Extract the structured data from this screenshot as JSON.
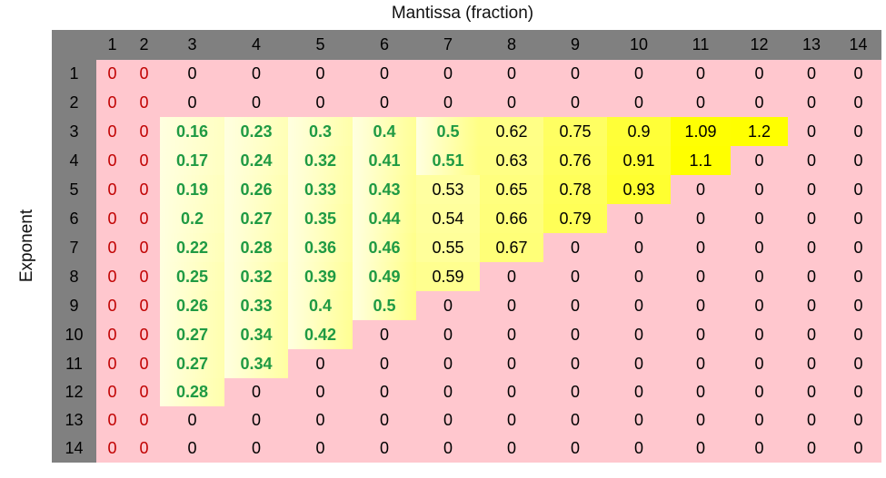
{
  "chart_data": {
    "type": "heatmap",
    "xlabel": "Mantissa (fraction)",
    "ylabel": "Exponent",
    "columns": [
      1,
      2,
      3,
      4,
      5,
      6,
      7,
      8,
      9,
      10,
      11,
      12,
      13,
      14
    ],
    "rows": [
      1,
      2,
      3,
      4,
      5,
      6,
      7,
      8,
      9,
      10,
      11,
      12,
      13,
      14
    ],
    "values": [
      [
        "0",
        "0",
        "0",
        "0",
        "0",
        "0",
        "0",
        "0",
        "0",
        "0",
        "0",
        "0",
        "0",
        "0"
      ],
      [
        "0",
        "0",
        "0",
        "0",
        "0",
        "0",
        "0",
        "0",
        "0",
        "0",
        "0",
        "0",
        "0",
        "0"
      ],
      [
        "0",
        "0",
        "0.16",
        "0.23",
        "0.3",
        "0.4",
        "0.5",
        "0.62",
        "0.75",
        "0.9",
        "1.09",
        "1.2",
        "0",
        "0"
      ],
      [
        "0",
        "0",
        "0.17",
        "0.24",
        "0.32",
        "0.41",
        "0.51",
        "0.63",
        "0.76",
        "0.91",
        "1.1",
        "0",
        "0",
        "0"
      ],
      [
        "0",
        "0",
        "0.19",
        "0.26",
        "0.33",
        "0.43",
        "0.53",
        "0.65",
        "0.78",
        "0.93",
        "0",
        "0",
        "0",
        "0"
      ],
      [
        "0",
        "0",
        "0.2",
        "0.27",
        "0.35",
        "0.44",
        "0.54",
        "0.66",
        "0.79",
        "0",
        "0",
        "0",
        "0",
        "0"
      ],
      [
        "0",
        "0",
        "0.22",
        "0.28",
        "0.36",
        "0.46",
        "0.55",
        "0.67",
        "0",
        "0",
        "0",
        "0",
        "0",
        "0"
      ],
      [
        "0",
        "0",
        "0.25",
        "0.32",
        "0.39",
        "0.49",
        "0.59",
        "0",
        "0",
        "0",
        "0",
        "0",
        "0",
        "0"
      ],
      [
        "0",
        "0",
        "0.26",
        "0.33",
        "0.4",
        "0.5",
        "0",
        "0",
        "0",
        "0",
        "0",
        "0",
        "0",
        "0"
      ],
      [
        "0",
        "0",
        "0.27",
        "0.34",
        "0.42",
        "0",
        "0",
        "0",
        "0",
        "0",
        "0",
        "0",
        "0",
        "0"
      ],
      [
        "0",
        "0",
        "0.27",
        "0.34",
        "0",
        "0",
        "0",
        "0",
        "0",
        "0",
        "0",
        "0",
        "0",
        "0"
      ],
      [
        "0",
        "0",
        "0.28",
        "0",
        "0",
        "0",
        "0",
        "0",
        "0",
        "0",
        "0",
        "0",
        "0",
        "0"
      ],
      [
        "0",
        "0",
        "0",
        "0",
        "0",
        "0",
        "0",
        "0",
        "0",
        "0",
        "0",
        "0",
        "0",
        "0"
      ],
      [
        "0",
        "0",
        "0",
        "0",
        "0",
        "0",
        "0",
        "0",
        "0",
        "0",
        "0",
        "0",
        "0",
        "0"
      ]
    ],
    "colors": {
      "header_bg": "#808080",
      "zero_bg": "#ffc7ce",
      "low_bg": "#ffffe0",
      "high_bg": "#ffff00",
      "bold_text": "#1f9a43",
      "zero_text_first_cols": "#c00000",
      "text": "#000000"
    }
  }
}
